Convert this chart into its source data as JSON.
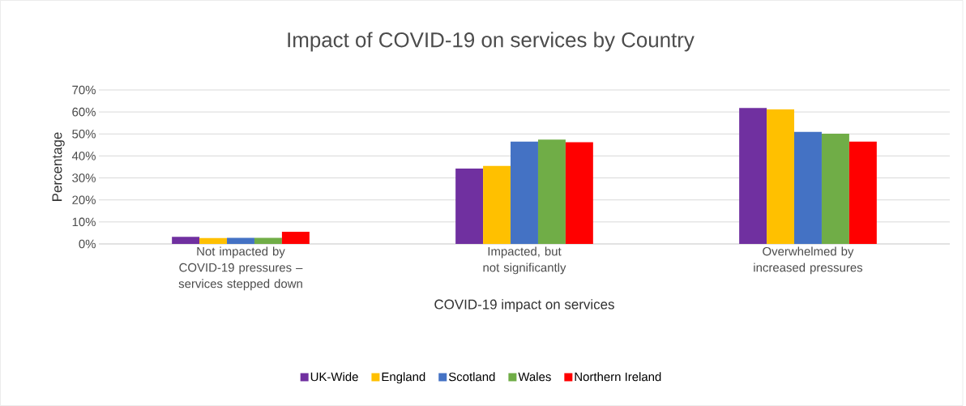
{
  "chart_data": {
    "type": "bar",
    "title": "Impact of COVID-19 on services by Country",
    "xlabel": "COVID-19 impact on services",
    "ylabel": "Percentage",
    "categories": [
      "Not impacted by COVID-19 pressures – services stepped down",
      "Impacted, but not significantly",
      "Overwhelmed by increased pressures"
    ],
    "series": [
      {
        "name": "UK-Wide",
        "color": "#7030a0",
        "values": [
          3.2,
          34.3,
          61.8
        ]
      },
      {
        "name": "England",
        "color": "#ffc000",
        "values": [
          2.7,
          35.5,
          61.2
        ]
      },
      {
        "name": "Scotland",
        "color": "#4472c4",
        "values": [
          2.8,
          46.5,
          50.9
        ]
      },
      {
        "name": "Wales",
        "color": "#70ad47",
        "values": [
          2.8,
          47.4,
          50.1
        ]
      },
      {
        "name": "Northern Ireland",
        "color": "#ff0000",
        "values": [
          5.5,
          46.2,
          46.5
        ]
      }
    ],
    "ylim": [
      0,
      70
    ],
    "yticks": [
      {
        "value": 0,
        "label": "0%"
      },
      {
        "value": 10,
        "label": "10%"
      },
      {
        "value": 20,
        "label": "20%"
      },
      {
        "value": 30,
        "label": "30%"
      },
      {
        "value": 40,
        "label": "40%"
      },
      {
        "value": 50,
        "label": "50%"
      },
      {
        "value": 60,
        "label": "60%"
      },
      {
        "value": 70,
        "label": "70%"
      }
    ],
    "grid": "y",
    "legend": "bottom"
  }
}
